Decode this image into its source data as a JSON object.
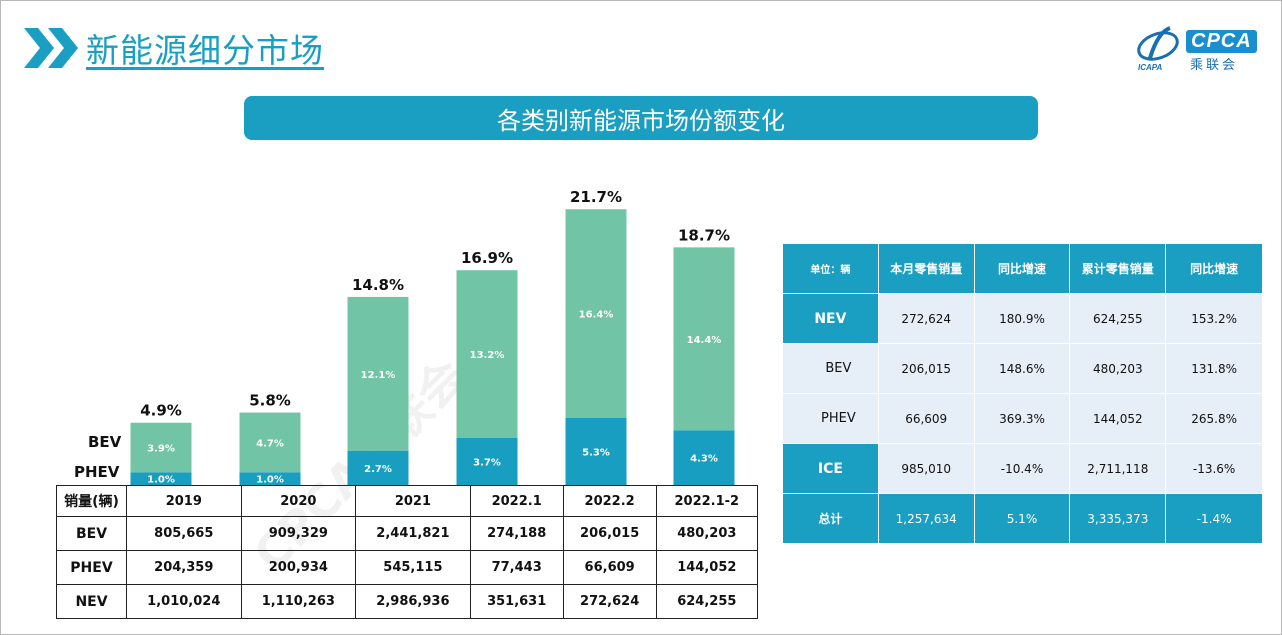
{
  "page": {
    "title": "新能源细分市场",
    "banner": "各类别新能源市场份额变化",
    "logo_text": "CPCA",
    "logo_cn": "乘联会",
    "logo_small": "ICAPA",
    "watermark": "CPCA乘联会"
  },
  "colors": {
    "accent": "#1a9fc2",
    "bev": "#71c4a6",
    "phev": "#189ec1",
    "table_cell": "#e6eef8"
  },
  "chart_data": {
    "type": "bar",
    "stacked": true,
    "categories": [
      "2019",
      "2020",
      "2021",
      "2022.1",
      "2022.2",
      "2022.1-2"
    ],
    "series": [
      {
        "name": "PHEV",
        "values": [
          1.0,
          1.0,
          2.7,
          3.7,
          5.3,
          4.3
        ],
        "labels": [
          "1.0%",
          "1.0%",
          "2.7%",
          "3.7%",
          "5.3%",
          "4.3%"
        ]
      },
      {
        "name": "BEV",
        "values": [
          3.9,
          4.7,
          12.1,
          13.2,
          16.4,
          14.4
        ],
        "labels": [
          "3.9%",
          "4.7%",
          "12.1%",
          "13.2%",
          "16.4%",
          "14.4%"
        ]
      }
    ],
    "totals": [
      "4.9%",
      "5.8%",
      "14.8%",
      "16.9%",
      "21.7%",
      "18.7%"
    ],
    "total_values": [
      4.9,
      5.8,
      14.8,
      16.9,
      21.7,
      18.7
    ],
    "legend": [
      "BEV",
      "PHEV"
    ],
    "ylim": [
      0,
      24
    ],
    "title": "各类别新能源市场份额变化"
  },
  "left_table": {
    "header": "销量(辆)",
    "columns": [
      "2019",
      "2020",
      "2021",
      "2022.1",
      "2022.2",
      "2022.1-2"
    ],
    "rows": [
      {
        "label": "BEV",
        "values": [
          "805,665",
          "909,329",
          "2,441,821",
          "274,188",
          "206,015",
          "480,203"
        ]
      },
      {
        "label": "PHEV",
        "values": [
          "204,359",
          "200,934",
          "545,115",
          "77,443",
          "66,609",
          "144,052"
        ]
      },
      {
        "label": "NEV",
        "values": [
          "1,010,024",
          "1,110,263",
          "2,986,936",
          "351,631",
          "272,624",
          "624,255"
        ]
      }
    ]
  },
  "right_table": {
    "headers": [
      "单位：辆",
      "本月零售销量",
      "同比增速",
      "累计零售销量",
      "同比增速"
    ],
    "rows": [
      {
        "label": "NEV",
        "values": [
          "272,624",
          "180.9%",
          "624,255",
          "153.2%"
        ]
      },
      {
        "label": "BEV",
        "values": [
          "206,015",
          "148.6%",
          "480,203",
          "131.8%"
        ]
      },
      {
        "label": "PHEV",
        "values": [
          "66,609",
          "369.3%",
          "144,052",
          "265.8%"
        ]
      },
      {
        "label": "ICE",
        "values": [
          "985,010",
          "-10.4%",
          "2,711,118",
          "-13.6%"
        ]
      },
      {
        "label": "总计",
        "values": [
          "1,257,634",
          "5.1%",
          "3,335,373",
          "-1.4%"
        ]
      }
    ]
  }
}
